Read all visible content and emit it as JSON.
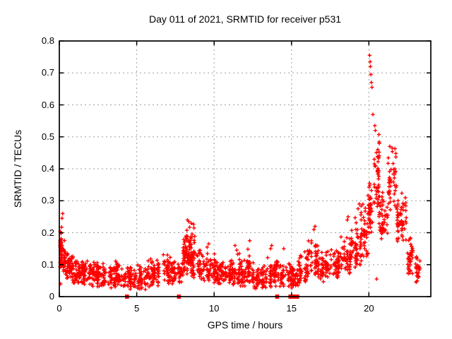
{
  "chart_data": {
    "type": "scatter",
    "title": "Day 011 of 2021, SRMTID for receiver p531",
    "xlabel": "GPS time / hours",
    "ylabel": "SRMTID / TECUs",
    "xlim": [
      0,
      24
    ],
    "ylim": [
      0,
      0.8
    ],
    "xticks": [
      0,
      5,
      10,
      15,
      20
    ],
    "xtick_labels": [
      "0",
      "5",
      "10",
      "15",
      "20"
    ],
    "yticks": [
      0,
      0.1,
      0.2,
      0.3,
      0.4,
      0.5,
      0.6,
      0.7,
      0.8
    ],
    "ytick_labels": [
      "0",
      "0.1",
      "0.2",
      "0.3",
      "0.4",
      "0.5",
      "0.6",
      "0.7",
      "0.8"
    ],
    "grid": true,
    "legend_position": "none",
    "colors": {
      "marker": "#ff0000",
      "grid": "#9e9e9e",
      "axis": "#000000",
      "background": "#ffffff"
    },
    "marker": {
      "shape": "plus",
      "size": 5.4,
      "stroke_width": 1.4
    },
    "band_segment_fields": [
      "x_start",
      "x_end",
      "y_min",
      "y_max",
      "n_points"
    ],
    "band_segments": [
      [
        0.0,
        0.15,
        0.09,
        0.22,
        30
      ],
      [
        0.1,
        0.4,
        0.07,
        0.19,
        40
      ],
      [
        0.4,
        0.8,
        0.05,
        0.15,
        45
      ],
      [
        0.8,
        1.3,
        0.04,
        0.13,
        50
      ],
      [
        1.3,
        2.1,
        0.035,
        0.12,
        70
      ],
      [
        2.1,
        3.1,
        0.03,
        0.115,
        80
      ],
      [
        3.1,
        4.1,
        0.025,
        0.12,
        80
      ],
      [
        4.1,
        4.9,
        0.02,
        0.1,
        60
      ],
      [
        4.9,
        5.6,
        0.02,
        0.1,
        55
      ],
      [
        5.6,
        6.6,
        0.03,
        0.125,
        75
      ],
      [
        6.6,
        7.4,
        0.035,
        0.14,
        60
      ],
      [
        7.4,
        7.95,
        0.04,
        0.12,
        45
      ],
      [
        7.95,
        8.5,
        0.07,
        0.21,
        55
      ],
      [
        8.15,
        8.75,
        0.1,
        0.235,
        40
      ],
      [
        8.5,
        9.1,
        0.05,
        0.16,
        40
      ],
      [
        9.1,
        10.1,
        0.035,
        0.14,
        75
      ],
      [
        10.1,
        11.1,
        0.035,
        0.12,
        75
      ],
      [
        11.1,
        11.7,
        0.035,
        0.15,
        50
      ],
      [
        11.7,
        12.15,
        0.03,
        0.12,
        40
      ],
      [
        12.15,
        12.6,
        0.035,
        0.16,
        40
      ],
      [
        12.6,
        13.4,
        0.02,
        0.11,
        60
      ],
      [
        13.4,
        14.2,
        0.03,
        0.13,
        60
      ],
      [
        14.2,
        15.0,
        0.025,
        0.115,
        55
      ],
      [
        15.0,
        15.45,
        0.02,
        0.1,
        35
      ],
      [
        15.45,
        16.05,
        0.04,
        0.15,
        45
      ],
      [
        16.05,
        16.75,
        0.05,
        0.19,
        55
      ],
      [
        16.75,
        17.45,
        0.045,
        0.15,
        50
      ],
      [
        17.45,
        18.15,
        0.05,
        0.16,
        55
      ],
      [
        18.15,
        18.85,
        0.06,
        0.2,
        50
      ],
      [
        18.85,
        19.45,
        0.09,
        0.26,
        50
      ],
      [
        19.45,
        19.95,
        0.11,
        0.3,
        45
      ],
      [
        19.95,
        20.3,
        0.17,
        0.38,
        40
      ],
      [
        20.3,
        20.65,
        0.28,
        0.545,
        45
      ],
      [
        20.65,
        21.25,
        0.17,
        0.35,
        50
      ],
      [
        21.25,
        21.75,
        0.26,
        0.475,
        45
      ],
      [
        21.75,
        22.5,
        0.17,
        0.33,
        55
      ],
      [
        22.5,
        23.0,
        0.07,
        0.2,
        40
      ],
      [
        23.0,
        23.35,
        0.04,
        0.14,
        28
      ]
    ],
    "outlier_points": [
      [
        0.18,
        0.245
      ],
      [
        0.22,
        0.26
      ],
      [
        0.08,
        0.04
      ],
      [
        8.28,
        0.24
      ],
      [
        8.36,
        0.235
      ],
      [
        9.55,
        0.155
      ],
      [
        9.65,
        0.165
      ],
      [
        11.35,
        0.16
      ],
      [
        12.3,
        0.175
      ],
      [
        13.65,
        0.15
      ],
      [
        13.72,
        0.16
      ],
      [
        14.5,
        0.15
      ],
      [
        16.45,
        0.21
      ],
      [
        16.52,
        0.22
      ],
      [
        18.6,
        0.24
      ],
      [
        18.66,
        0.25
      ],
      [
        19.3,
        0.275
      ],
      [
        19.38,
        0.29
      ],
      [
        20.05,
        0.755
      ],
      [
        20.08,
        0.735
      ],
      [
        20.1,
        0.72
      ],
      [
        20.13,
        0.695
      ],
      [
        20.16,
        0.67
      ],
      [
        20.2,
        0.655
      ],
      [
        20.26,
        0.57
      ],
      [
        20.38,
        0.535
      ],
      [
        20.42,
        0.52
      ],
      [
        21.35,
        0.47
      ],
      [
        21.5,
        0.465
      ],
      [
        20.5,
        0.055
      ],
      [
        23.05,
        0.045
      ]
    ],
    "zero_flag_marks": {
      "color": "#ff0000",
      "x_ranges": [
        [
          4.25,
          4.5
        ],
        [
          7.6,
          7.85
        ],
        [
          13.95,
          14.2
        ],
        [
          14.8,
          15.5
        ]
      ]
    }
  }
}
